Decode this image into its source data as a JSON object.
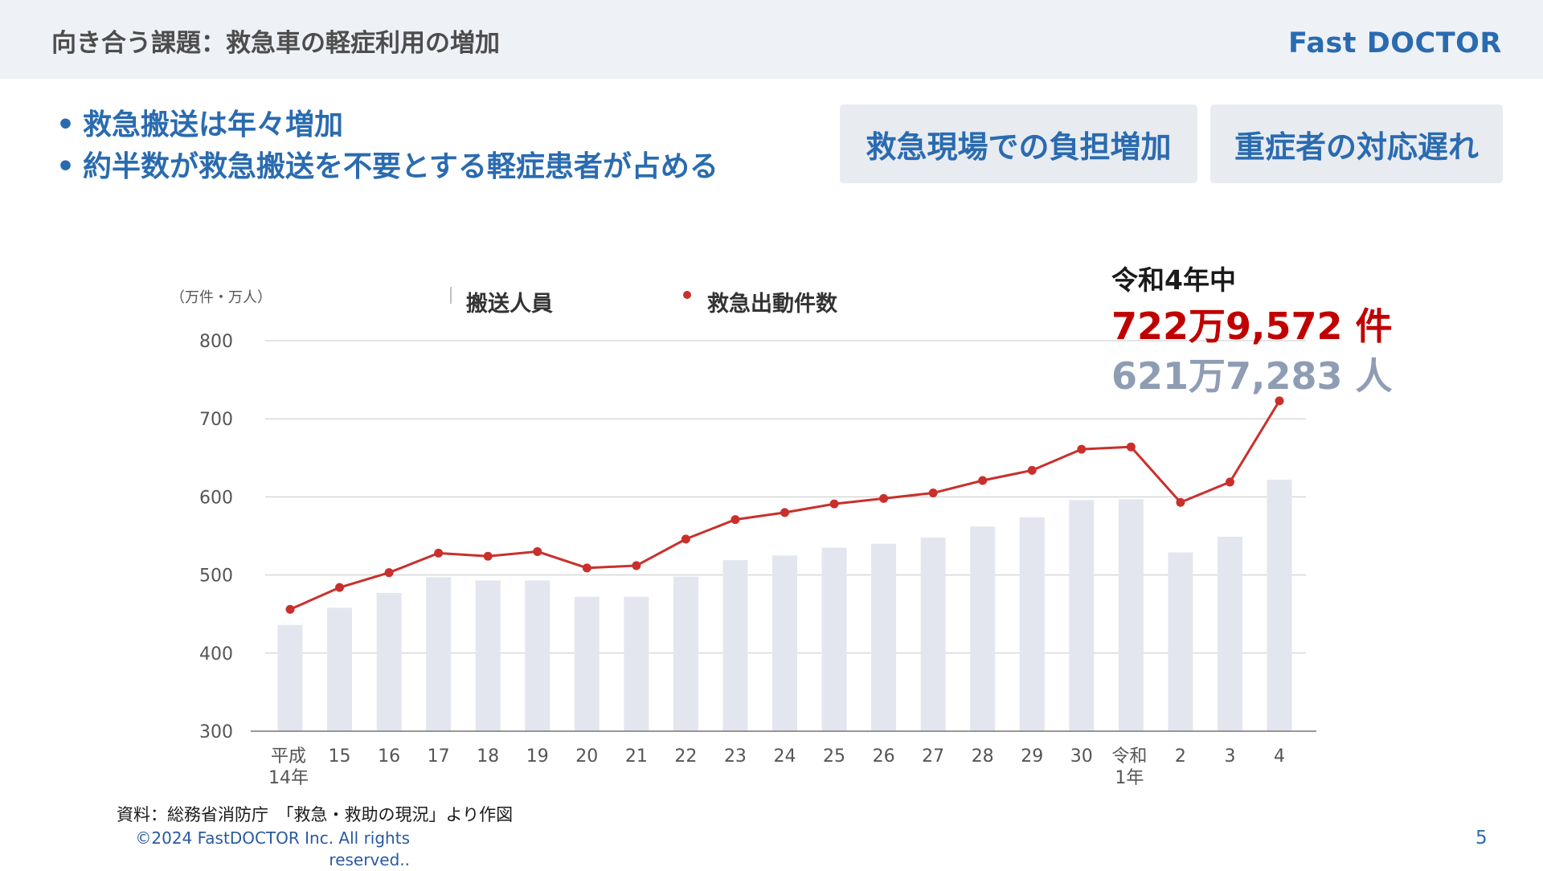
{
  "header": {
    "title": "向き合う課題：救急車の軽症利用の増加",
    "logo": "Fast DOCTOR"
  },
  "bullets": [
    "救急搬送は年々増加",
    "約半数が救急搬送を不要とする軽症患者が占める"
  ],
  "callouts": [
    "救急現場での負担増加",
    "重症者の対応遅れ"
  ],
  "highlight": {
    "period": "令和4年中",
    "dispatch_count": "722万9,572 件",
    "transported": "621万7,283 人"
  },
  "chart_data": {
    "type": "bar+line",
    "unit_label": "（万件・万人）",
    "ylim": [
      300,
      800
    ],
    "yticks": [
      300,
      400,
      500,
      600,
      700,
      800
    ],
    "grid": true,
    "legend_placement": "top",
    "categories": [
      "平成\n14年",
      "15",
      "16",
      "17",
      "18",
      "19",
      "20",
      "21",
      "22",
      "23",
      "24",
      "25",
      "26",
      "27",
      "28",
      "29",
      "30",
      "令和\n1年",
      "2",
      "3",
      "4"
    ],
    "series": [
      {
        "name": "搬送人員",
        "type": "bar",
        "color": "#e3e6ee",
        "values": [
          436,
          458,
          477,
          497,
          493,
          493,
          472,
          472,
          498,
          519,
          525,
          535,
          540,
          548,
          562,
          574,
          596,
          597,
          529,
          549,
          622
        ]
      },
      {
        "name": "救急出動件数",
        "type": "line",
        "color": "#c9302c",
        "values": [
          456,
          484,
          503,
          528,
          524,
          530,
          509,
          512,
          546,
          571,
          580,
          591,
          598,
          605,
          621,
          634,
          661,
          664,
          593,
          619,
          723
        ]
      }
    ]
  },
  "footer": {
    "source": "資料：総務省消防庁　「救急・救助の現況」より作図",
    "copyright": "©2024  FastDOCTOR Inc. All rights reserved..",
    "page_number": "5"
  }
}
